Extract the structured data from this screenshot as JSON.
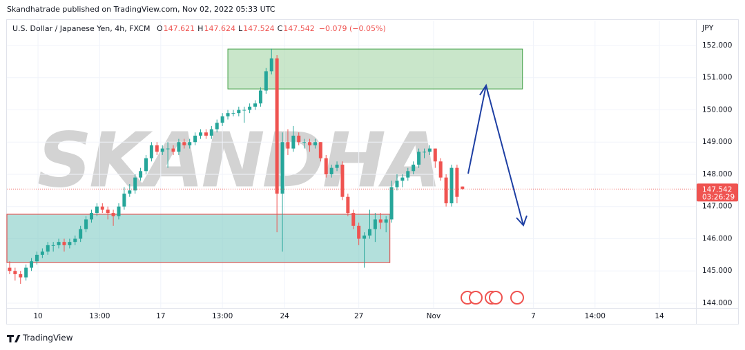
{
  "header": {
    "publisher": "Skandhatrade published on TradingView.com, Nov 02, 2022 05:33 UTC"
  },
  "chart_data": {
    "type": "candlestick",
    "symbol": "U.S. Dollar / Japanese Yen, 4h, FXCM",
    "legend_labels": [
      "O",
      "H",
      "L",
      "C"
    ],
    "change": "−0.079 (−0.05%)",
    "currency": "JPY",
    "countdown": "03:26:29",
    "watermark": "SKANDHA",
    "up_color": "#26a69a",
    "down_color": "#ef5350",
    "xlim": [
      -0.5,
      125.8
    ],
    "xticks": [
      {
        "value": 5.2,
        "label": "10"
      },
      {
        "value": 16.5,
        "label": "13:00"
      },
      {
        "value": 27.7,
        "label": "17"
      },
      {
        "value": 39,
        "label": "13:00"
      },
      {
        "value": 50.4,
        "label": "24"
      },
      {
        "value": 64,
        "label": "27"
      },
      {
        "value": 77.7,
        "label": "Nov"
      },
      {
        "value": 96,
        "label": "7"
      },
      {
        "value": 107.3,
        "label": "14:00"
      },
      {
        "value": 119.1,
        "label": "14"
      }
    ],
    "ylim": [
      143.85,
      152.77
    ],
    "yticks": [
      {
        "value": 144,
        "label": "144.000"
      },
      {
        "value": 145,
        "label": "145.000"
      },
      {
        "value": 146,
        "label": "146.000"
      },
      {
        "value": 147,
        "label": "147.000"
      },
      {
        "value": 148,
        "label": "148.000"
      },
      {
        "value": 149,
        "label": "149.000"
      },
      {
        "value": 150,
        "label": "150.000"
      },
      {
        "value": 151,
        "label": "151.000"
      },
      {
        "value": 152,
        "label": "152.000"
      }
    ],
    "zones": [
      {
        "x": [
          40,
          94
        ],
        "y": [
          150.65,
          151.89
        ],
        "color": "#a5d6a7"
      },
      {
        "x": [
          -0.5,
          69.7
        ],
        "y": [
          145.26,
          146.76
        ],
        "color": "#80cbc4"
      }
    ],
    "ohlc": [
      [
        145.1,
        145.3,
        144.9,
        145.0
      ],
      [
        145.0,
        145.1,
        144.7,
        144.9
      ],
      [
        144.9,
        145.0,
        144.6,
        144.8
      ],
      [
        144.8,
        145.2,
        144.7,
        145.1
      ],
      [
        145.1,
        145.4,
        145.0,
        145.3
      ],
      [
        145.3,
        145.6,
        145.2,
        145.5
      ],
      [
        145.5,
        145.7,
        145.4,
        145.6
      ],
      [
        145.6,
        145.9,
        145.5,
        145.8
      ],
      [
        145.8,
        145.9,
        145.6,
        145.8
      ],
      [
        145.8,
        146.0,
        145.7,
        145.9
      ],
      [
        145.9,
        146.0,
        145.6,
        145.8
      ],
      [
        145.8,
        146.0,
        145.7,
        145.9
      ],
      [
        145.9,
        146.1,
        145.8,
        146.0
      ],
      [
        146.0,
        146.4,
        145.9,
        146.3
      ],
      [
        146.3,
        146.7,
        146.2,
        146.6
      ],
      [
        146.6,
        146.9,
        146.5,
        146.8
      ],
      [
        146.8,
        147.1,
        146.7,
        147.0
      ],
      [
        147.0,
        147.1,
        146.8,
        146.9
      ],
      [
        146.9,
        147.0,
        146.6,
        146.8
      ],
      [
        146.8,
        146.9,
        146.4,
        146.7
      ],
      [
        146.7,
        147.1,
        146.6,
        147.0
      ],
      [
        147.0,
        147.6,
        146.9,
        147.4
      ],
      [
        147.4,
        147.7,
        147.3,
        147.5
      ],
      [
        147.5,
        148.0,
        147.4,
        147.9
      ],
      [
        147.9,
        148.2,
        147.8,
        148.1
      ],
      [
        148.1,
        148.6,
        148.0,
        148.5
      ],
      [
        148.5,
        149.0,
        148.4,
        148.9
      ],
      [
        148.9,
        149.0,
        148.6,
        148.7
      ],
      [
        148.7,
        148.9,
        148.6,
        148.8
      ],
      [
        148.8,
        149.0,
        148.2,
        148.8
      ],
      [
        148.8,
        148.9,
        148.6,
        148.7
      ],
      [
        148.7,
        149.1,
        148.6,
        149.0
      ],
      [
        149.0,
        149.1,
        148.8,
        148.9
      ],
      [
        148.9,
        149.1,
        148.8,
        149.0
      ],
      [
        149.0,
        149.3,
        148.9,
        149.2
      ],
      [
        149.2,
        149.4,
        149.1,
        149.3
      ],
      [
        149.3,
        149.4,
        149.1,
        149.2
      ],
      [
        149.2,
        149.5,
        149.1,
        149.4
      ],
      [
        149.4,
        149.7,
        149.3,
        149.6
      ],
      [
        149.6,
        149.9,
        149.5,
        149.8
      ],
      [
        149.8,
        150.0,
        149.7,
        149.9
      ],
      [
        149.9,
        150.0,
        149.8,
        149.9
      ],
      [
        149.9,
        150.1,
        149.8,
        150.0
      ],
      [
        150.0,
        150.1,
        149.6,
        150.0
      ],
      [
        150.0,
        150.2,
        149.9,
        150.1
      ],
      [
        150.1,
        150.3,
        150.0,
        150.2
      ],
      [
        150.2,
        150.7,
        150.1,
        150.6
      ],
      [
        150.6,
        151.3,
        150.5,
        151.2
      ],
      [
        151.2,
        151.9,
        151.1,
        151.6
      ],
      [
        151.6,
        151.7,
        146.2,
        147.4
      ],
      [
        147.4,
        149.3,
        145.6,
        149.0
      ],
      [
        149.0,
        149.4,
        148.6,
        148.8
      ],
      [
        148.8,
        149.5,
        148.7,
        149.2
      ],
      [
        149.2,
        149.3,
        148.9,
        149.0
      ],
      [
        149.0,
        149.1,
        148.8,
        149.0
      ],
      [
        149.0,
        149.1,
        148.7,
        148.9
      ],
      [
        148.9,
        149.1,
        148.8,
        149.0
      ],
      [
        149.0,
        149.0,
        148.4,
        148.5
      ],
      [
        148.5,
        148.6,
        147.9,
        148.0
      ],
      [
        148.0,
        148.3,
        147.9,
        148.2
      ],
      [
        148.2,
        148.4,
        148.1,
        148.3
      ],
      [
        148.3,
        148.4,
        147.2,
        147.3
      ],
      [
        147.3,
        147.4,
        146.7,
        146.8
      ],
      [
        146.8,
        146.9,
        146.3,
        146.4
      ],
      [
        146.4,
        146.5,
        145.8,
        146.0
      ],
      [
        146.0,
        146.2,
        145.1,
        146.1
      ],
      [
        146.1,
        146.9,
        146.0,
        146.3
      ],
      [
        146.3,
        146.8,
        145.9,
        146.6
      ],
      [
        146.6,
        146.8,
        146.3,
        146.5
      ],
      [
        146.5,
        146.7,
        146.2,
        146.6
      ],
      [
        146.6,
        147.8,
        146.5,
        147.6
      ],
      [
        147.6,
        148.0,
        147.5,
        147.8
      ],
      [
        147.8,
        148.0,
        147.6,
        147.9
      ],
      [
        147.9,
        148.2,
        147.8,
        148.1
      ],
      [
        148.1,
        148.4,
        148.0,
        148.3
      ],
      [
        148.3,
        148.8,
        148.2,
        148.7
      ],
      [
        148.7,
        148.8,
        148.5,
        148.7
      ],
      [
        148.7,
        148.9,
        148.6,
        148.8
      ],
      [
        148.8,
        148.8,
        148.2,
        148.4
      ],
      [
        148.4,
        148.5,
        147.8,
        147.9
      ],
      [
        147.9,
        148.0,
        147.0,
        147.1
      ],
      [
        147.1,
        148.3,
        147.0,
        148.2
      ],
      [
        148.2,
        148.3,
        147.1,
        147.3
      ],
      [
        147.621,
        147.624,
        147.524,
        147.542
      ]
    ]
  },
  "footer": {
    "brand": "TradingView"
  }
}
